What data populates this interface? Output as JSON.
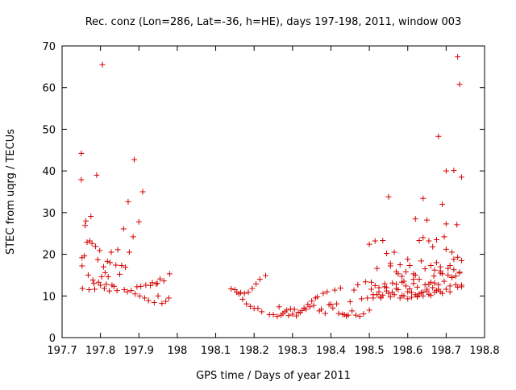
{
  "chart_data": {
    "type": "scatter",
    "title": "Rec. conz (Lon=286, Lat=-36, h=HE), days 197-198, 2011, window 003",
    "xlabel": "GPS time / Days of year 2011",
    "ylabel": "STEC from uqrg / TECUs",
    "xlim": [
      197.7,
      198.8
    ],
    "ylim": [
      0,
      70
    ],
    "xticks": [
      197.7,
      197.8,
      197.9,
      198,
      198.1,
      198.2,
      198.3,
      198.4,
      198.5,
      198.6,
      198.7,
      198.8
    ],
    "xtick_labels": [
      "197.7",
      "197.8",
      "197.9",
      "198",
      "198.1",
      "198.2",
      "198.3",
      "198.4",
      "198.5",
      "198.6",
      "198.7",
      "198.8"
    ],
    "yticks": [
      0,
      10,
      20,
      30,
      40,
      50,
      60,
      70
    ],
    "ytick_labels": [
      "0",
      "10",
      "20",
      "30",
      "40",
      "50",
      "60",
      "70"
    ],
    "marker": "+",
    "color": "#d40000",
    "series": [
      {
        "name": "STEC",
        "x": [
          197.75,
          197.75,
          197.752,
          197.752,
          197.753,
          197.758,
          197.76,
          197.762,
          197.765,
          197.768,
          197.77,
          197.772,
          197.775,
          197.778,
          197.78,
          197.783,
          197.785,
          197.787,
          197.79,
          197.793,
          197.795,
          197.798,
          197.8,
          197.803,
          197.805,
          197.808,
          197.81,
          197.812,
          197.815,
          197.818,
          197.82,
          197.823,
          197.825,
          197.828,
          197.83,
          197.835,
          197.84,
          197.843,
          197.845,
          197.85,
          197.855,
          197.86,
          197.862,
          197.865,
          197.87,
          197.872,
          197.875,
          197.88,
          197.885,
          197.888,
          197.89,
          197.895,
          197.9,
          197.902,
          197.905,
          197.91,
          197.915,
          197.918,
          197.925,
          197.93,
          197.935,
          197.94,
          197.945,
          197.948,
          197.95,
          197.955,
          197.96,
          197.965,
          197.97,
          197.978,
          197.98,
          198.14,
          198.15,
          198.155,
          198.16,
          198.165,
          198.17,
          198.175,
          198.18,
          198.185,
          198.19,
          198.195,
          198.2,
          198.205,
          198.21,
          198.215,
          198.22,
          198.23,
          198.24,
          198.25,
          198.26,
          198.265,
          198.27,
          198.275,
          198.28,
          198.285,
          198.29,
          198.295,
          198.3,
          198.305,
          198.31,
          198.315,
          198.32,
          198.325,
          198.33,
          198.335,
          198.34,
          198.345,
          198.35,
          198.355,
          198.36,
          198.365,
          198.37,
          198.375,
          198.38,
          198.385,
          198.39,
          198.395,
          198.4,
          198.405,
          198.41,
          198.415,
          198.42,
          198.425,
          198.43,
          198.435,
          198.44,
          198.445,
          198.45,
          198.455,
          198.46,
          198.465,
          198.47,
          198.475,
          198.48,
          198.485,
          198.49,
          198.495,
          198.5,
          198.5,
          198.505,
          198.51,
          198.515,
          198.52,
          198.525,
          198.53,
          198.535,
          198.54,
          198.545,
          198.55,
          198.555,
          198.56,
          198.565,
          198.57,
          198.575,
          198.58,
          198.585,
          198.59,
          198.595,
          198.6,
          198.605,
          198.61,
          198.615,
          198.62,
          198.625,
          198.63,
          198.635,
          198.64,
          198.645,
          198.65,
          198.655,
          198.66,
          198.665,
          198.67,
          198.675,
          198.68,
          198.685,
          198.69,
          198.695,
          198.7,
          198.705,
          198.71,
          198.715,
          198.72,
          198.725,
          198.73,
          198.735,
          198.74,
          198.74,
          198.505,
          198.51,
          198.515,
          198.52,
          198.525,
          198.53,
          198.535,
          198.54,
          198.545,
          198.55,
          198.555,
          198.56,
          198.565,
          198.57,
          198.575,
          198.58,
          198.585,
          198.59,
          198.595,
          198.6,
          198.605,
          198.61,
          198.615,
          198.62,
          198.625,
          198.63,
          198.635,
          198.64,
          198.645,
          198.65,
          198.655,
          198.66,
          198.665,
          198.67,
          198.675,
          198.68,
          198.685,
          198.69,
          198.695,
          198.7,
          198.705,
          198.71,
          198.715,
          198.72,
          198.725,
          198.73,
          198.735,
          198.74,
          198.62,
          198.63,
          198.64,
          198.65,
          198.66,
          198.668,
          198.675,
          198.68,
          198.685,
          198.69,
          198.7,
          198.71,
          198.72,
          198.728,
          198.735,
          198.545,
          198.555,
          198.57,
          198.585,
          198.6,
          198.615,
          198.625,
          198.64,
          198.655,
          198.67,
          198.685,
          198.7,
          198.715,
          198.73,
          198.74
        ],
        "y": [
          44.2,
          37.9,
          19.2,
          17.2,
          11.8,
          19.6,
          26.9,
          28.0,
          22.9,
          15.0,
          11.5,
          23.2,
          29.1,
          22.6,
          13.8,
          13.0,
          11.6,
          21.9,
          39.0,
          18.7,
          13.3,
          20.9,
          12.6,
          14.6,
          65.5,
          17.0,
          11.8,
          15.6,
          12.8,
          18.3,
          14.6,
          11.2,
          18.0,
          20.5,
          12.6,
          12.3,
          17.4,
          11.3,
          21.1,
          15.2,
          17.3,
          26.1,
          11.5,
          16.9,
          11.0,
          32.6,
          20.5,
          11.3,
          24.2,
          42.7,
          10.5,
          12.2,
          27.8,
          10.0,
          12.3,
          35.0,
          9.5,
          12.6,
          8.9,
          12.5,
          13.2,
          8.4,
          12.9,
          13.0,
          10.0,
          14.1,
          8.2,
          13.6,
          8.7,
          9.5,
          15.3,
          11.7,
          11.5,
          10.9,
          10.5,
          10.8,
          9.2,
          10.6,
          8.1,
          10.9,
          7.5,
          11.8,
          7.0,
          12.9,
          7.0,
          14.0,
          6.2,
          14.9,
          5.5,
          5.5,
          5.1,
          7.4,
          5.4,
          5.8,
          6.2,
          6.6,
          5.3,
          6.9,
          5.6,
          6.8,
          5.2,
          6.1,
          6.0,
          6.5,
          7.1,
          6.8,
          8.0,
          7.4,
          8.8,
          7.7,
          9.5,
          9.8,
          6.4,
          6.8,
          10.6,
          5.8,
          11.0,
          7.9,
          8.0,
          7.1,
          11.4,
          8.1,
          5.8,
          11.9,
          5.6,
          5.5,
          5.2,
          5.4,
          8.6,
          6.4,
          11.4,
          5.4,
          12.7,
          5.1,
          9.3,
          5.7,
          13.4,
          9.5,
          6.6,
          22.4,
          13.3,
          10.3,
          23.2,
          16.6,
          11.0,
          9.5,
          23.3,
          12.9,
          20.2,
          33.8,
          17.2,
          10.9,
          20.5,
          11.8,
          15.3,
          17.5,
          10.1,
          13.5,
          15.8,
          11.0,
          17.3,
          10.8,
          14.0,
          15.0,
          9.8,
          10.5,
          18.4,
          33.4,
          16.5,
          11.6,
          23.2,
          10.1,
          21.8,
          16.2,
          23.5,
          11.6,
          17.0,
          10.6,
          24.2,
          40.0,
          16.6,
          11.0,
          14.5,
          18.8,
          12.7,
          67.4,
          15.7,
          18.5,
          12.6,
          11.6,
          9.5,
          12.5,
          10.3,
          12.0,
          9.8,
          10.2,
          12.2,
          11.2,
          10.6,
          9.8,
          13.1,
          10.3,
          12.8,
          11.5,
          9.5,
          13.3,
          10.0,
          12.4,
          9.3,
          11.7,
          9.7,
          13.0,
          10.3,
          10.0,
          14.0,
          10.8,
          10.0,
          12.7,
          11.2,
          10.4,
          13.3,
          12.0,
          10.9,
          11.3,
          12.7,
          11.0,
          15.3,
          13.5,
          11.6,
          15.0,
          12.4,
          14.4,
          16.3,
          14.8,
          12.1,
          15.5,
          12.2,
          28.5,
          23.3,
          24.0,
          28.2,
          17.3,
          14.8,
          18.0,
          48.3,
          15.5,
          32.0,
          27.3,
          17.3,
          40.1,
          27.1,
          60.8,
          12.0,
          17.8,
          15.8,
          14.7,
          18.8,
          15.3,
          12.1,
          10.9,
          12.8,
          13.1,
          16.0,
          21.2,
          20.5,
          19.3,
          38.5
        ]
      }
    ]
  }
}
